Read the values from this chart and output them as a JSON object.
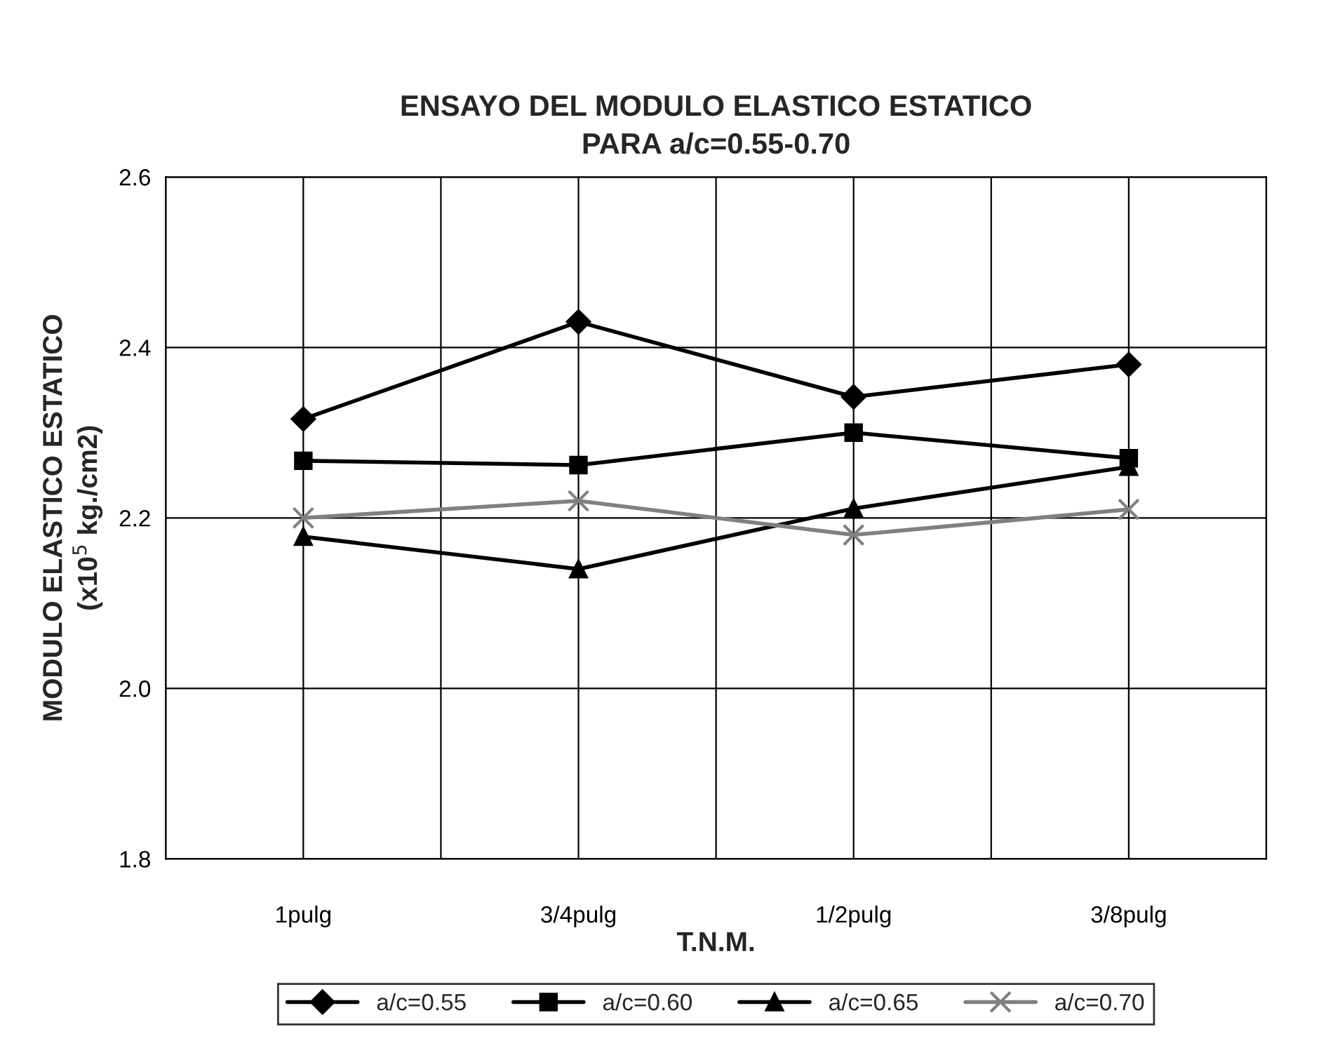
{
  "chart_data": {
    "type": "line",
    "title": "ENSAYO DEL MODULO ELASTICO ESTATICO\nPARA a/c=0.55-0.70",
    "xlabel": "T.N.M.",
    "ylabel": "MODULO ELASTICO ESTATICO\n(x10$^{5}$ kg./cm2)",
    "categories": [
      "1pulg",
      "3/4pulg",
      "1/2pulg",
      "3/8pulg"
    ],
    "series": [
      {
        "name": "a/c=0.55",
        "color": "#000000",
        "marker": "diamond",
        "values": [
          2.316,
          2.43,
          2.342,
          2.38
        ]
      },
      {
        "name": "a/c=0.60",
        "color": "#000000",
        "marker": "square",
        "values": [
          2.267,
          2.262,
          2.3,
          2.27
        ]
      },
      {
        "name": "a/c=0.65",
        "color": "#000000",
        "marker": "triangle",
        "values": [
          2.178,
          2.14,
          2.211,
          2.26
        ]
      },
      {
        "name": "a/c=0.70",
        "color": "#808080",
        "marker": "cross",
        "values": [
          2.2,
          2.22,
          2.18,
          2.21
        ]
      }
    ],
    "ylim": [
      1.8,
      2.6
    ],
    "yticks": [
      {
        "value": 1.8,
        "label": "1.8"
      },
      {
        "value": 2.0,
        "label": "2.0"
      },
      {
        "value": 2.2,
        "label": "2.2"
      },
      {
        "value": 2.4,
        "label": "2.4"
      },
      {
        "value": 2.6,
        "label": "2.6"
      }
    ],
    "grid": true,
    "legend": "bottom",
    "line_style": "solid"
  }
}
